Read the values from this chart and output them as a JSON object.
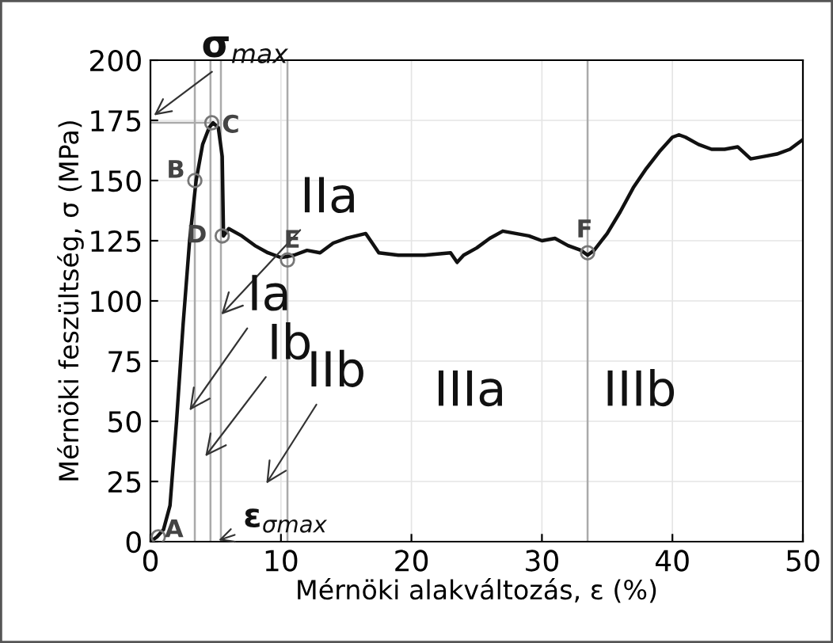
{
  "chart_data": {
    "type": "line",
    "xlabel": "Mérnöki alakváltozás, ε (%)",
    "ylabel": "Mérnöki feszültség, σ (MPa)",
    "x": [
      0,
      0.5,
      1,
      1.5,
      2,
      2.5,
      3,
      3.5,
      4,
      4.5,
      4.8,
      5.2,
      5.5,
      5.6,
      6,
      7,
      8,
      9,
      10,
      11,
      12,
      13,
      14,
      15,
      16.5,
      17,
      17.5,
      19,
      21,
      23,
      23.5,
      24,
      25,
      26,
      27,
      28,
      29,
      30,
      31,
      32,
      33,
      33.5,
      34,
      35,
      36,
      37,
      38,
      39,
      40,
      40.5,
      41,
      42,
      43,
      44,
      45,
      46,
      47,
      48,
      49,
      50
    ],
    "series": [
      {
        "color": "#111111",
        "values": [
          0,
          2,
          5,
          15,
          50,
          90,
          125,
          150,
          165,
          172,
          174,
          172,
          160,
          127,
          130,
          127,
          123,
          120,
          118,
          119,
          121,
          120,
          124,
          126,
          128,
          124,
          120,
          119,
          119,
          120,
          116,
          119,
          122,
          126,
          129,
          128,
          127,
          125,
          126,
          123,
          121,
          119,
          121,
          128,
          137,
          147,
          155,
          162,
          168,
          169,
          168,
          165,
          163,
          163,
          164,
          159,
          160,
          161,
          163,
          167
        ]
      }
    ],
    "xlim": [
      0,
      50
    ],
    "ylim": [
      0,
      200
    ],
    "xticks": [
      0,
      10,
      20,
      30,
      40,
      50
    ],
    "yticks": [
      0,
      25,
      50,
      75,
      100,
      125,
      150,
      175,
      200
    ],
    "grid": true,
    "marker": "none",
    "line_style": "solid",
    "ref_lines": [
      {
        "axis": "x",
        "value": 3.4,
        "label": null,
        "color": "#aaaaaa"
      },
      {
        "axis": "x",
        "value": 4.6,
        "label": null,
        "color": "#aaaaaa"
      },
      {
        "axis": "x",
        "value": 5.4,
        "label": null,
        "color": "#aaaaaa"
      },
      {
        "axis": "x",
        "value": 10.5,
        "label": null,
        "color": "#aaaaaa"
      },
      {
        "axis": "x",
        "value": 33.5,
        "label": null,
        "color": "#aaaaaa"
      },
      {
        "axis": "y",
        "value": 174,
        "label": null,
        "color": "#aaaaaa"
      }
    ],
    "annotations": [
      {
        "text": "σ$_{max}$",
        "x": 0,
        "y": 176
      },
      {
        "text": "ε$_{σmax}$",
        "x": 4.9,
        "y": 0
      },
      {
        "text": "IIa",
        "x": 5.2,
        "y": 93
      },
      {
        "text": "Ia",
        "x": 2.8,
        "y": 53
      },
      {
        "text": "Ib",
        "x": 4.0,
        "y": 34
      },
      "IIb",
      "IIIa",
      "IIIb",
      {
        "text": "A",
        "x": 0.6,
        "y": 2
      },
      {
        "text": "B",
        "x": 3.4,
        "y": 150
      },
      {
        "text": "C",
        "x": 4.7,
        "y": 174
      },
      {
        "text": "D",
        "x": 5.5,
        "y": 127
      },
      {
        "text": "E",
        "x": 10.5,
        "y": 117
      },
      {
        "text": "F",
        "x": 33.5,
        "y": 120
      }
    ]
  }
}
